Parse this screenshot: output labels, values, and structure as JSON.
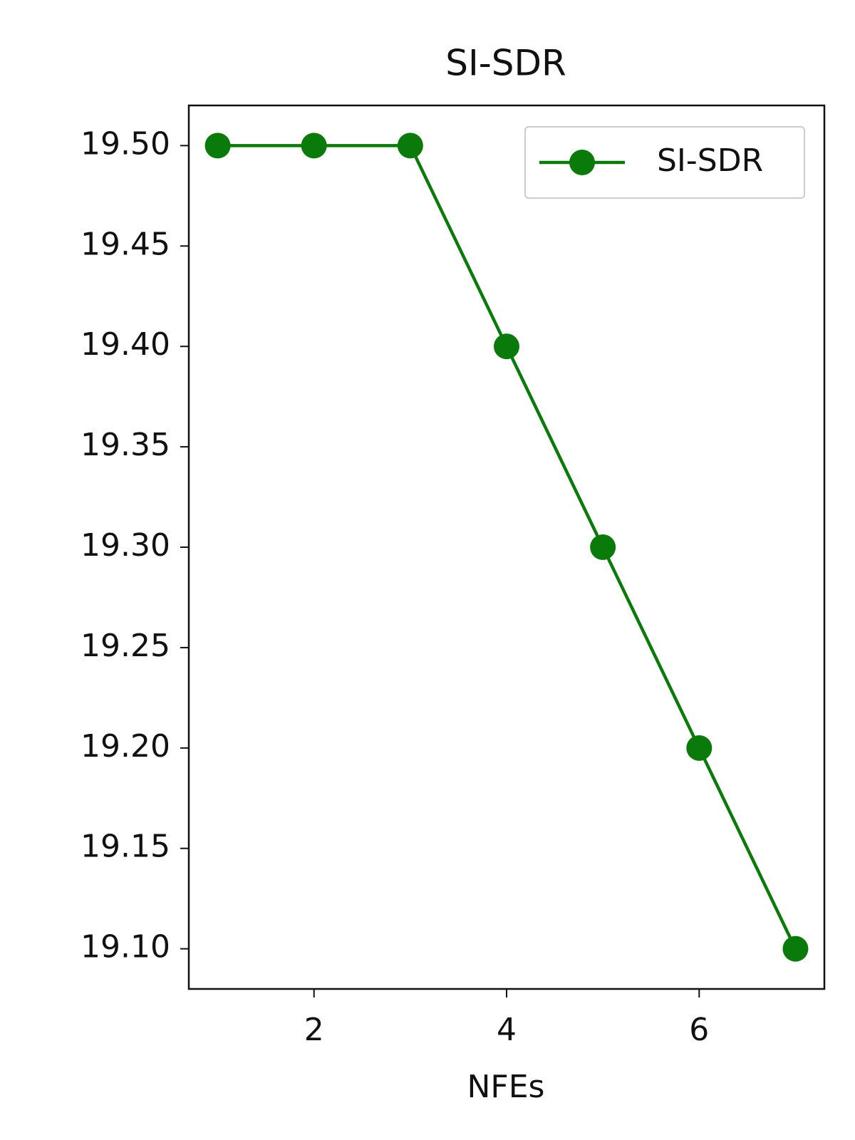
{
  "chart_data": {
    "type": "line",
    "title": "SI-SDR",
    "x_label": "NFEs",
    "x": [
      1,
      2,
      3,
      4,
      5,
      6,
      7
    ],
    "series": [
      {
        "name": "SI-SDR",
        "color": "#0a7a0a",
        "values": [
          19.5,
          19.5,
          19.5,
          19.4,
          19.3,
          19.2,
          19.1
        ]
      }
    ],
    "xlim": [
      0.7,
      7.3
    ],
    "xticks": [
      2,
      4,
      6
    ],
    "ylim": [
      19.08,
      19.52
    ],
    "yticks": [
      {
        "value": 19.1,
        "label": "19.10"
      },
      {
        "value": 19.15,
        "label": "19.15"
      },
      {
        "value": 19.2,
        "label": "19.20"
      },
      {
        "value": 19.25,
        "label": "19.25"
      },
      {
        "value": 19.3,
        "label": "19.30"
      },
      {
        "value": 19.35,
        "label": "19.35"
      },
      {
        "value": 19.4,
        "label": "19.40"
      },
      {
        "value": 19.45,
        "label": "19.45"
      },
      {
        "value": 19.5,
        "label": "19.50"
      }
    ],
    "grid": false,
    "legend": "upper right"
  }
}
